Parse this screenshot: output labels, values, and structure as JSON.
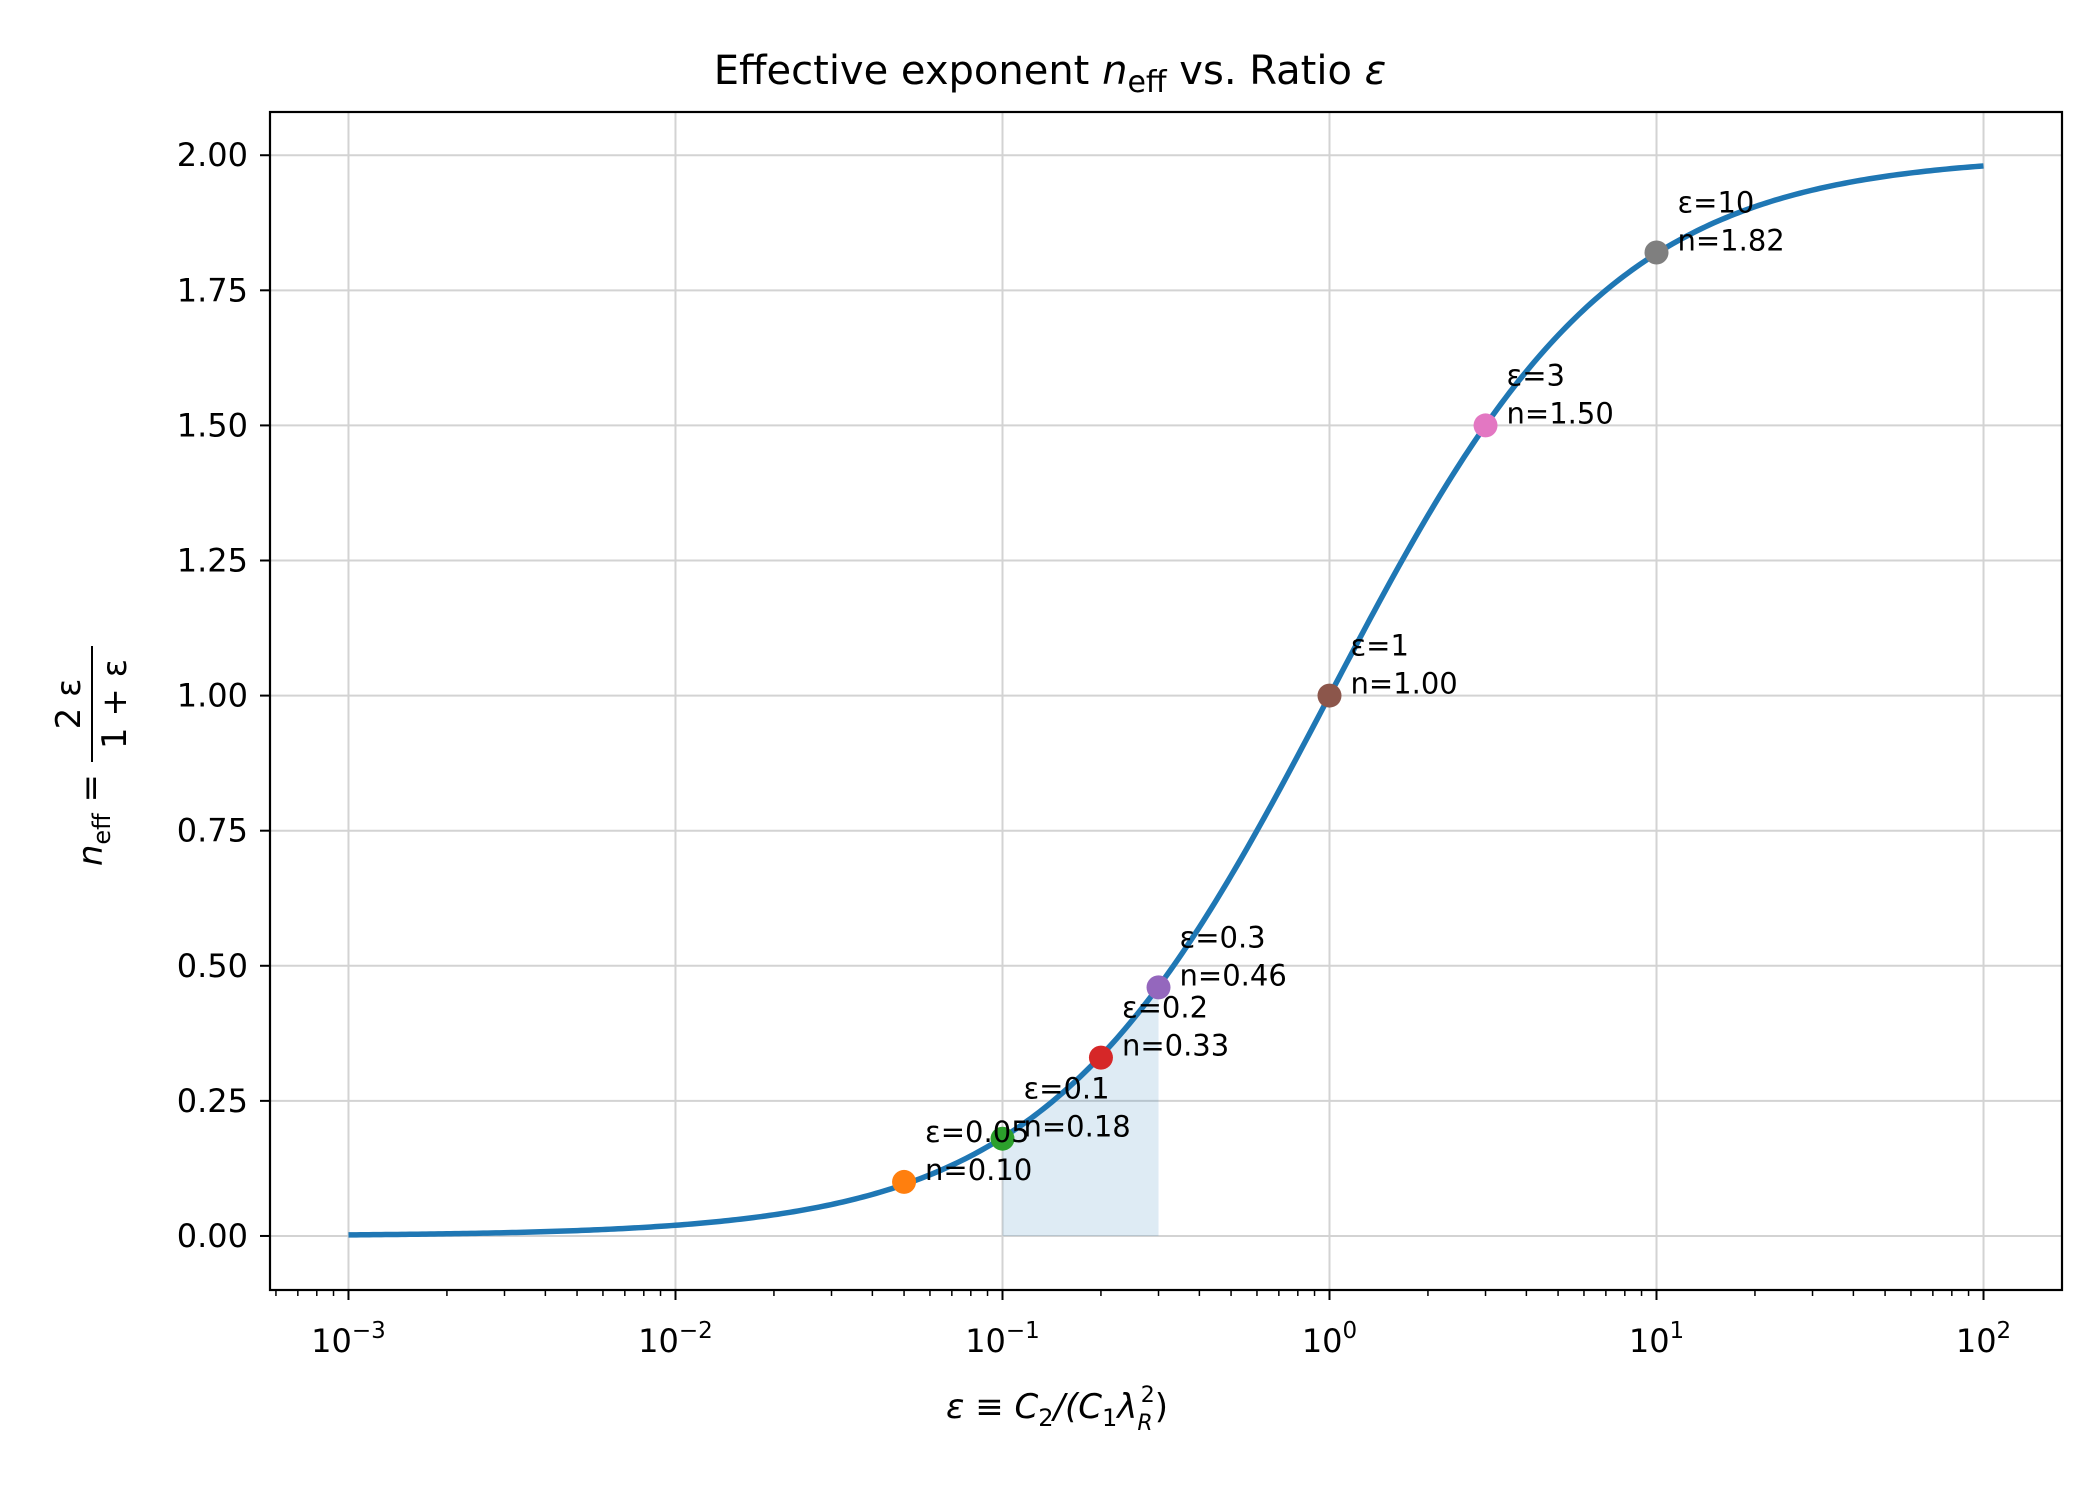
{
  "chart_data": {
    "type": "line",
    "title": {
      "prefix": "Effective exponent ",
      "var": "n",
      "sub": "eff",
      "suffix": " vs. Ratio ",
      "var2": "ε"
    },
    "xlabel": {
      "lhs": "ε ≡ C",
      "c2": "2",
      "mid": "/(C",
      "c1": "1",
      "lambda": "λ",
      "r": "R",
      "two": "2",
      "close": ")"
    },
    "ylabel": {
      "n": "n",
      "sub": "eff",
      "eq": " = ",
      "num": "2 ε",
      "den": "1 + ε"
    },
    "xscale": "log",
    "xlim_decades": [
      -3.24,
      2.24
    ],
    "ylim": [
      -0.1,
      2.08
    ],
    "x_tick_labels": [
      {
        "exp": -3,
        "base": "10",
        "sup": "−3"
      },
      {
        "exp": -2,
        "base": "10",
        "sup": "−2"
      },
      {
        "exp": -1,
        "base": "10",
        "sup": "−1"
      },
      {
        "exp": 0,
        "base": "10",
        "sup": "0"
      },
      {
        "exp": 1,
        "base": "10",
        "sup": "1"
      },
      {
        "exp": 2,
        "base": "10",
        "sup": "2"
      }
    ],
    "y_ticks": [
      0.0,
      0.25,
      0.5,
      0.75,
      1.0,
      1.25,
      1.5,
      1.75,
      2.0
    ],
    "y_tick_labels": [
      "0.00",
      "0.25",
      "0.50",
      "0.75",
      "1.00",
      "1.25",
      "1.50",
      "1.75",
      "2.00"
    ],
    "grid": true,
    "curve": {
      "name": "n_eff = 2ε/(1+ε)",
      "color": "#1f77b4",
      "x_range": [
        0.001,
        100
      ]
    },
    "shaded_region": {
      "x_range": [
        0.1,
        0.3
      ],
      "color": "#1f77b4",
      "opacity": 0.15
    },
    "points": [
      {
        "x": 0.05,
        "y": 0.1,
        "color": "#ff7f0e",
        "label1": "ε=0.05",
        "label2": "n=0.10"
      },
      {
        "x": 0.1,
        "y": 0.18,
        "color": "#2ca02c",
        "label1": "ε=0.1",
        "label2": "n=0.18"
      },
      {
        "x": 0.2,
        "y": 0.33,
        "color": "#d62728",
        "label1": "ε=0.2",
        "label2": "n=0.33"
      },
      {
        "x": 0.3,
        "y": 0.46,
        "color": "#9467bd",
        "label1": "ε=0.3",
        "label2": "n=0.46"
      },
      {
        "x": 1,
        "y": 1.0,
        "color": "#8c564b",
        "label1": "ε=1",
        "label2": "n=1.00"
      },
      {
        "x": 3,
        "y": 1.5,
        "color": "#e377c2",
        "label1": "ε=3",
        "label2": "n=1.50"
      },
      {
        "x": 10,
        "y": 1.82,
        "color": "#7f7f7f",
        "label1": "ε=10",
        "label2": "n=1.82"
      }
    ]
  }
}
